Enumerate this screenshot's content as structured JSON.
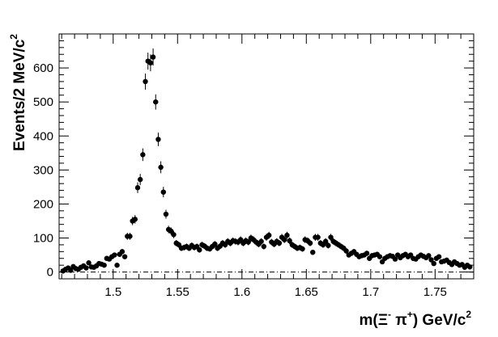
{
  "chart_data": {
    "type": "scatter",
    "title": "",
    "xlabel_parts": {
      "prefix": "m(Ξ",
      "xi_sup": "-",
      "mid": " π",
      "pi_sup": "+",
      "close": ")  GeV/c",
      "unit_sup": "2"
    },
    "ylabel_parts": {
      "text": "Events/2 MeV/c",
      "sup": "2"
    },
    "xlim": [
      1.458,
      1.78
    ],
    "ylim": [
      -20,
      700
    ],
    "xticks": [
      {
        "value": 1.5,
        "label": "1.5"
      },
      {
        "value": 1.55,
        "label": "1.55"
      },
      {
        "value": 1.6,
        "label": "1.6"
      },
      {
        "value": 1.65,
        "label": "1.65"
      },
      {
        "value": 1.7,
        "label": "1.7"
      },
      {
        "value": 1.75,
        "label": "1.75"
      }
    ],
    "yticks": [
      {
        "value": 0,
        "label": "0"
      },
      {
        "value": 100,
        "label": "100"
      },
      {
        "value": 200,
        "label": "200"
      },
      {
        "value": 300,
        "label": "300"
      },
      {
        "value": 400,
        "label": "400"
      },
      {
        "value": 500,
        "label": "500"
      },
      {
        "value": 600,
        "label": "600"
      }
    ],
    "reference_line": {
      "y": 0,
      "style": "dash-dot"
    },
    "marker_color": "#000000",
    "series": [
      {
        "points": [
          [
            1.461,
            3
          ],
          [
            1.463,
            8
          ],
          [
            1.465,
            12
          ],
          [
            1.467,
            5
          ],
          [
            1.469,
            16
          ],
          [
            1.471,
            10
          ],
          [
            1.473,
            8
          ],
          [
            1.475,
            14
          ],
          [
            1.477,
            18
          ],
          [
            1.479,
            12
          ],
          [
            1.481,
            27
          ],
          [
            1.483,
            15
          ],
          [
            1.485,
            14
          ],
          [
            1.487,
            18
          ],
          [
            1.489,
            25
          ],
          [
            1.491,
            23
          ],
          [
            1.493,
            20
          ],
          [
            1.495,
            40
          ],
          [
            1.497,
            38
          ],
          [
            1.499,
            45
          ],
          [
            1.501,
            50
          ],
          [
            1.503,
            20
          ],
          [
            1.505,
            52
          ],
          [
            1.507,
            60
          ],
          [
            1.509,
            45
          ],
          [
            1.511,
            105
          ],
          [
            1.513,
            105
          ],
          [
            1.515,
            150
          ],
          [
            1.517,
            155
          ],
          [
            1.519,
            248
          ],
          [
            1.521,
            272
          ],
          [
            1.523,
            345
          ],
          [
            1.525,
            560
          ],
          [
            1.527,
            620
          ],
          [
            1.529,
            615
          ],
          [
            1.531,
            632
          ],
          [
            1.533,
            500
          ],
          [
            1.535,
            390
          ],
          [
            1.537,
            308
          ],
          [
            1.539,
            235
          ],
          [
            1.541,
            170
          ],
          [
            1.543,
            125
          ],
          [
            1.545,
            120
          ],
          [
            1.547,
            110
          ],
          [
            1.549,
            85
          ],
          [
            1.551,
            80
          ],
          [
            1.553,
            70
          ],
          [
            1.555,
            72
          ],
          [
            1.557,
            75
          ],
          [
            1.559,
            70
          ],
          [
            1.561,
            78
          ],
          [
            1.563,
            72
          ],
          [
            1.565,
            75
          ],
          [
            1.567,
            65
          ],
          [
            1.569,
            80
          ],
          [
            1.571,
            76
          ],
          [
            1.573,
            70
          ],
          [
            1.575,
            68
          ],
          [
            1.577,
            75
          ],
          [
            1.579,
            82
          ],
          [
            1.581,
            70
          ],
          [
            1.583,
            76
          ],
          [
            1.585,
            85
          ],
          [
            1.587,
            80
          ],
          [
            1.589,
            90
          ],
          [
            1.591,
            85
          ],
          [
            1.593,
            92
          ],
          [
            1.595,
            90
          ],
          [
            1.597,
            88
          ],
          [
            1.599,
            95
          ],
          [
            1.601,
            85
          ],
          [
            1.603,
            92
          ],
          [
            1.605,
            88
          ],
          [
            1.607,
            100
          ],
          [
            1.609,
            95
          ],
          [
            1.611,
            88
          ],
          [
            1.613,
            82
          ],
          [
            1.615,
            90
          ],
          [
            1.617,
            75
          ],
          [
            1.619,
            102
          ],
          [
            1.621,
            108
          ],
          [
            1.623,
            88
          ],
          [
            1.625,
            82
          ],
          [
            1.627,
            90
          ],
          [
            1.629,
            85
          ],
          [
            1.631,
            102
          ],
          [
            1.633,
            95
          ],
          [
            1.635,
            108
          ],
          [
            1.637,
            92
          ],
          [
            1.639,
            80
          ],
          [
            1.641,
            75
          ],
          [
            1.643,
            70
          ],
          [
            1.645,
            72
          ],
          [
            1.647,
            68
          ],
          [
            1.649,
            95
          ],
          [
            1.651,
            92
          ],
          [
            1.653,
            85
          ],
          [
            1.655,
            58
          ],
          [
            1.657,
            102
          ],
          [
            1.659,
            102
          ],
          [
            1.661,
            85
          ],
          [
            1.663,
            80
          ],
          [
            1.665,
            90
          ],
          [
            1.667,
            78
          ],
          [
            1.669,
            102
          ],
          [
            1.671,
            90
          ],
          [
            1.673,
            85
          ],
          [
            1.675,
            80
          ],
          [
            1.677,
            75
          ],
          [
            1.679,
            70
          ],
          [
            1.681,
            62
          ],
          [
            1.683,
            50
          ],
          [
            1.685,
            55
          ],
          [
            1.687,
            60
          ],
          [
            1.689,
            52
          ],
          [
            1.691,
            45
          ],
          [
            1.693,
            48
          ],
          [
            1.695,
            50
          ],
          [
            1.697,
            55
          ],
          [
            1.699,
            40
          ],
          [
            1.701,
            48
          ],
          [
            1.703,
            50
          ],
          [
            1.705,
            52
          ],
          [
            1.707,
            45
          ],
          [
            1.709,
            30
          ],
          [
            1.711,
            40
          ],
          [
            1.713,
            45
          ],
          [
            1.715,
            48
          ],
          [
            1.717,
            46
          ],
          [
            1.719,
            38
          ],
          [
            1.721,
            50
          ],
          [
            1.723,
            42
          ],
          [
            1.725,
            48
          ],
          [
            1.727,
            52
          ],
          [
            1.729,
            45
          ],
          [
            1.731,
            50
          ],
          [
            1.733,
            40
          ],
          [
            1.735,
            38
          ],
          [
            1.737,
            45
          ],
          [
            1.739,
            50
          ],
          [
            1.741,
            46
          ],
          [
            1.743,
            42
          ],
          [
            1.745,
            48
          ],
          [
            1.747,
            36
          ],
          [
            1.749,
            25
          ],
          [
            1.751,
            40
          ],
          [
            1.753,
            45
          ],
          [
            1.755,
            30
          ],
          [
            1.757,
            32
          ],
          [
            1.759,
            35
          ],
          [
            1.761,
            28
          ],
          [
            1.763,
            22
          ],
          [
            1.765,
            30
          ],
          [
            1.767,
            25
          ],
          [
            1.769,
            20
          ],
          [
            1.771,
            22
          ],
          [
            1.773,
            14
          ],
          [
            1.775,
            20
          ],
          [
            1.777,
            15
          ]
        ]
      }
    ]
  }
}
